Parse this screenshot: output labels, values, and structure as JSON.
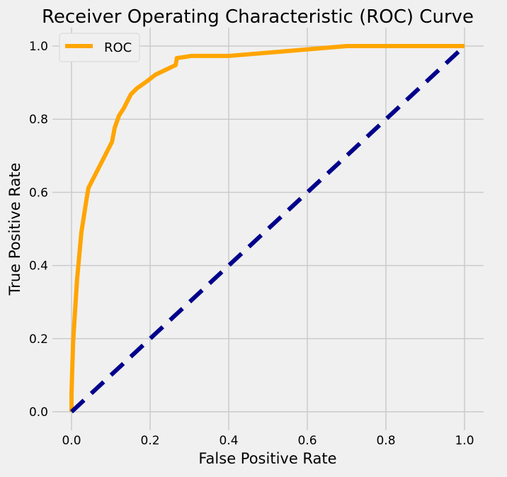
{
  "chart_data": {
    "type": "line",
    "title": "Receiver Operating Characteristic (ROC) Curve",
    "xlabel": "False Positive Rate",
    "ylabel": "True Positive Rate",
    "xlim": [
      -0.05,
      1.05
    ],
    "ylim": [
      -0.05,
      1.05
    ],
    "xticks": [
      "0.0",
      "0.2",
      "0.4",
      "0.6",
      "0.8",
      "1.0"
    ],
    "yticks": [
      "0.0",
      "0.2",
      "0.4",
      "0.6",
      "0.8",
      "1.0"
    ],
    "grid": true,
    "legend": "upper-left",
    "series": [
      {
        "name": "ROC",
        "color": "#ffa500",
        "style": "solid",
        "x": [
          0,
          0,
          0.004,
          0.014,
          0.025,
          0.038,
          0.043,
          0.103,
          0.11,
          0.121,
          0.133,
          0.151,
          0.166,
          0.191,
          0.214,
          0.265,
          0.268,
          0.305,
          0.4,
          0.7,
          1.0
        ],
        "y": [
          0,
          0.05,
          0.19,
          0.36,
          0.49,
          0.58,
          0.612,
          0.738,
          0.777,
          0.81,
          0.83,
          0.868,
          0.884,
          0.903,
          0.922,
          0.948,
          0.967,
          0.973,
          0.973,
          1.0,
          1.0
        ]
      },
      {
        "color": "#00008b",
        "style": "dashed",
        "x": [
          0,
          1
        ],
        "y": [
          0,
          1
        ]
      }
    ]
  }
}
